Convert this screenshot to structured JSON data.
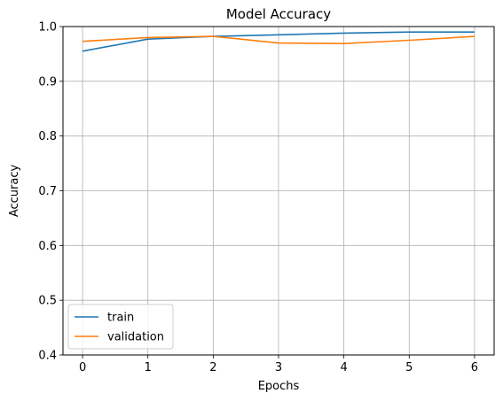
{
  "chart_data": {
    "type": "line",
    "title": "Model Accuracy",
    "xlabel": "Epochs",
    "ylabel": "Accuracy",
    "x": [
      0,
      1,
      2,
      3,
      4,
      5,
      6
    ],
    "xticks": [
      "0",
      "1",
      "2",
      "3",
      "4",
      "5",
      "6"
    ],
    "yticks": [
      "0.4",
      "0.5",
      "0.6",
      "0.7",
      "0.8",
      "0.9",
      "1.0"
    ],
    "ylim": [
      0.4,
      1.0
    ],
    "xlim": [
      -0.3,
      6.3
    ],
    "grid": true,
    "legend_position": "lower-left",
    "series": [
      {
        "name": "train",
        "color": "#1f77b4",
        "values": [
          0.955,
          0.977,
          0.982,
          0.985,
          0.988,
          0.99,
          0.99
        ]
      },
      {
        "name": "validation",
        "color": "#ff7f0e",
        "values": [
          0.973,
          0.98,
          0.982,
          0.97,
          0.969,
          0.975,
          0.982
        ]
      }
    ]
  }
}
